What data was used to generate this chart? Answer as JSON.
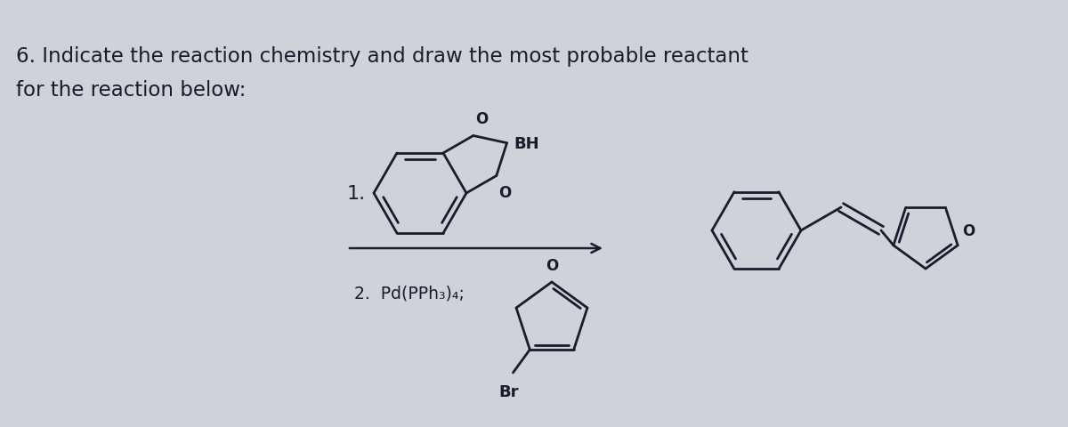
{
  "background_color": "#cfd2d8",
  "title_line1": "6. Indicate the reaction chemistry and draw the most probable reactant",
  "title_line2": "for the reaction below:",
  "title_fontsize": 16.5,
  "title_color": "#1a1c2e",
  "label_1": "1.",
  "label_2_text": "2.  Pd(PPh₃)₄;",
  "label_bh": "BH",
  "label_br": "Br",
  "label_O": "O",
  "line_color": "#1a1c2e",
  "line_width": 2.0,
  "arrow_color": "#1a1c2e",
  "fig_width": 12.0,
  "fig_height": 4.81
}
